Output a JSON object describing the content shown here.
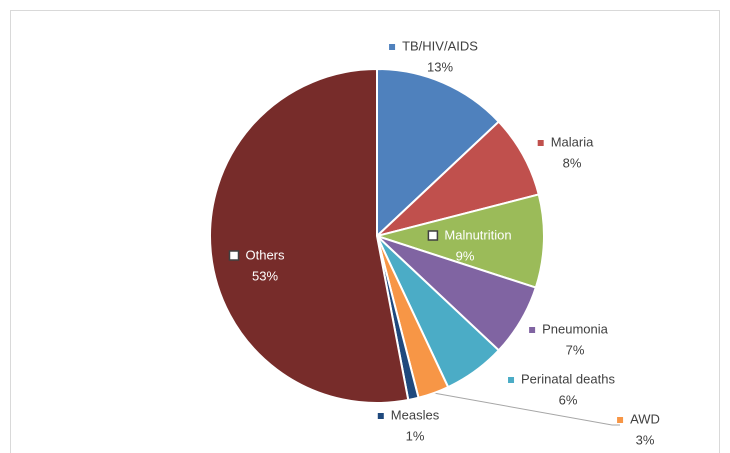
{
  "chart_data": {
    "type": "pie",
    "categories": [
      "TB/HIV/AIDS",
      "Malaria",
      "Malnutrition",
      "Pneumonia",
      "Perinatal deaths",
      "AWD",
      "Measles",
      "Others"
    ],
    "values": [
      13,
      8,
      9,
      7,
      6,
      3,
      1,
      53
    ],
    "value_labels": [
      "13%",
      "8%",
      "9%",
      "7%",
      "6%",
      "3%",
      "1%",
      "53%"
    ],
    "colors": [
      "#4f81bd",
      "#c0504d",
      "#9bbb59",
      "#8064a2",
      "#4bacc6",
      "#f79646",
      "#1f497d",
      "#772c2a"
    ]
  }
}
